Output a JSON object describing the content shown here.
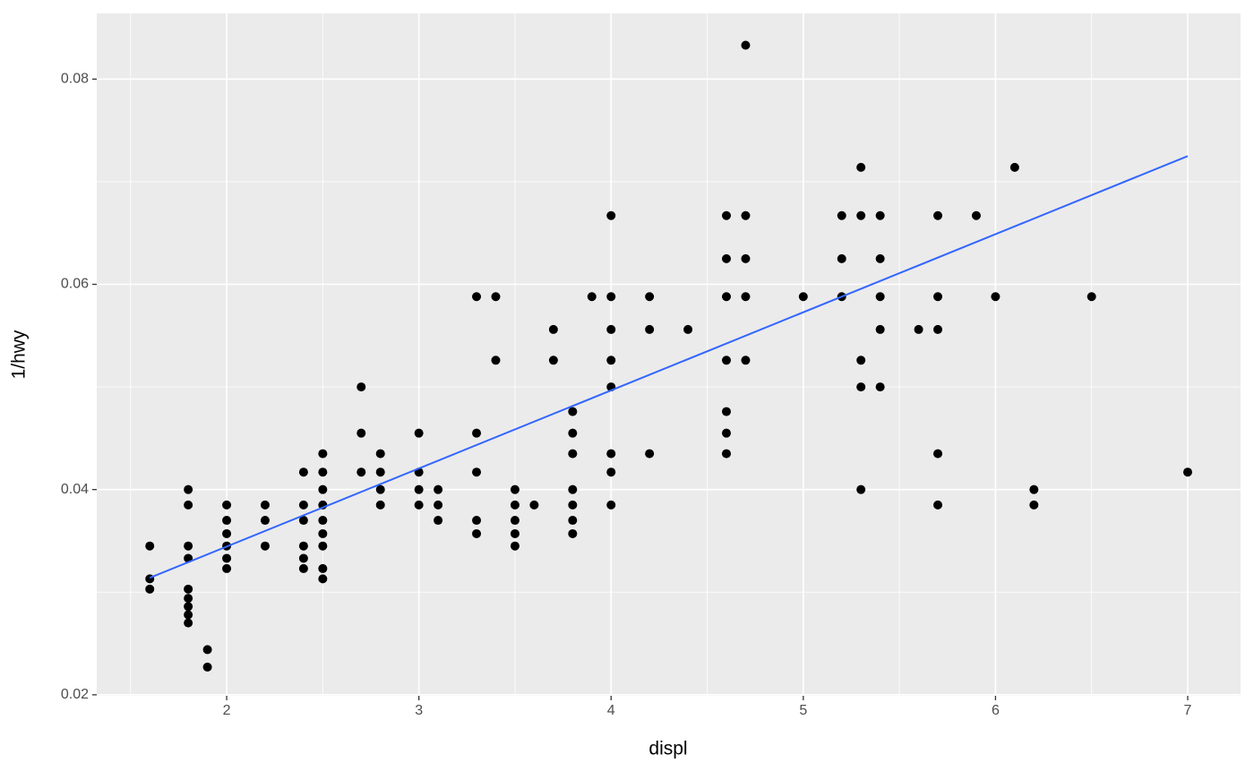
{
  "chart_data": {
    "type": "scatter",
    "x_label": "displ",
    "y_label": "1/hwy",
    "xlim": [
      1.324,
      7.275
    ],
    "ylim": [
      0.0199,
      0.0864
    ],
    "xticks": [
      2,
      3,
      4,
      5,
      6,
      7
    ],
    "yticks": [
      0.02,
      0.04,
      0.06,
      0.08
    ],
    "x_minor_ticks": [
      1.5,
      2.5,
      3.5,
      4.5,
      5.5,
      6.5
    ],
    "y_minor_ticks": [
      0.03,
      0.05,
      0.07
    ],
    "grid": true,
    "points": {
      "color": "#000000",
      "x": [
        1.6,
        1.6,
        1.6,
        1.8,
        1.8,
        1.8,
        1.8,
        1.8,
        1.8,
        1.8,
        1.8,
        1.8,
        1.9,
        1.9,
        2.0,
        2.0,
        2.0,
        2.0,
        2.0,
        2.0,
        2.2,
        2.2,
        2.2,
        2.4,
        2.4,
        2.4,
        2.4,
        2.4,
        2.4,
        2.5,
        2.5,
        2.5,
        2.5,
        2.5,
        2.5,
        2.5,
        2.5,
        2.5,
        2.7,
        2.7,
        2.7,
        2.8,
        2.8,
        2.8,
        2.8,
        3.0,
        3.0,
        3.0,
        3.0,
        3.1,
        3.1,
        3.1,
        3.3,
        3.3,
        3.3,
        3.3,
        3.3,
        3.4,
        3.4,
        3.5,
        3.5,
        3.5,
        3.5,
        3.5,
        3.6,
        3.7,
        3.7,
        3.8,
        3.8,
        3.8,
        3.8,
        3.8,
        3.8,
        3.8,
        3.9,
        4.0,
        4.0,
        4.0,
        4.0,
        4.0,
        4.0,
        4.0,
        4.0,
        4.2,
        4.2,
        4.2,
        4.4,
        4.6,
        4.6,
        4.6,
        4.6,
        4.6,
        4.6,
        4.6,
        4.7,
        4.7,
        4.7,
        4.7,
        4.7,
        5.0,
        5.2,
        5.2,
        5.2,
        5.3,
        5.3,
        5.3,
        5.3,
        5.3,
        5.4,
        5.4,
        5.4,
        5.4,
        5.4,
        5.6,
        5.7,
        5.7,
        5.7,
        5.7,
        5.7,
        5.9,
        6.0,
        6.1,
        6.2,
        6.2,
        6.5,
        7.0
      ],
      "y": [
        0.0345,
        0.0313,
        0.0303,
        0.04,
        0.0385,
        0.0345,
        0.0333,
        0.0303,
        0.0294,
        0.0286,
        0.0278,
        0.027,
        0.0244,
        0.0227,
        0.0385,
        0.037,
        0.0357,
        0.0345,
        0.0333,
        0.0323,
        0.0385,
        0.037,
        0.0345,
        0.0417,
        0.0385,
        0.037,
        0.0345,
        0.0333,
        0.0323,
        0.0435,
        0.0417,
        0.04,
        0.0385,
        0.037,
        0.0357,
        0.0345,
        0.0323,
        0.0313,
        0.05,
        0.0455,
        0.0417,
        0.0435,
        0.0417,
        0.04,
        0.0385,
        0.0455,
        0.0417,
        0.04,
        0.0385,
        0.04,
        0.0385,
        0.037,
        0.0588,
        0.0455,
        0.0417,
        0.037,
        0.0357,
        0.0588,
        0.0526,
        0.04,
        0.0385,
        0.037,
        0.0357,
        0.0345,
        0.0385,
        0.0556,
        0.0526,
        0.0476,
        0.0455,
        0.0435,
        0.04,
        0.0385,
        0.037,
        0.0357,
        0.0588,
        0.0667,
        0.0588,
        0.0556,
        0.0526,
        0.05,
        0.0435,
        0.0417,
        0.0385,
        0.0588,
        0.0556,
        0.0435,
        0.0556,
        0.0667,
        0.0625,
        0.0588,
        0.0526,
        0.0476,
        0.0455,
        0.0435,
        0.0833,
        0.0667,
        0.0625,
        0.0588,
        0.0526,
        0.0588,
        0.0667,
        0.0625,
        0.0588,
        0.0714,
        0.0667,
        0.0526,
        0.05,
        0.04,
        0.0667,
        0.0625,
        0.0588,
        0.0556,
        0.05,
        0.0556,
        0.0667,
        0.0588,
        0.0556,
        0.0435,
        0.0385,
        0.0667,
        0.0588,
        0.0714,
        0.04,
        0.0385,
        0.0588,
        0.0417
      ]
    },
    "trend": {
      "color": "#3366ff",
      "x": [
        1.6,
        7.0
      ],
      "y": [
        0.0314,
        0.0725
      ]
    }
  }
}
